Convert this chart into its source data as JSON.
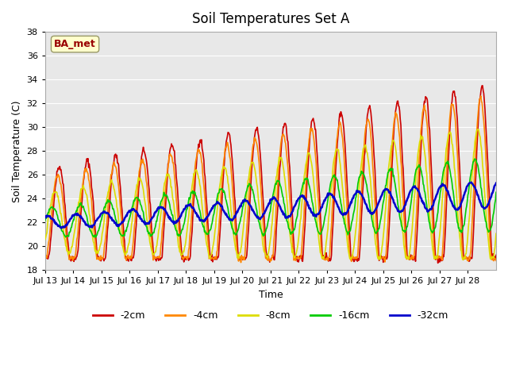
{
  "title": "Soil Temperatures Set A",
  "xlabel": "Time",
  "ylabel": "Soil Temperature (C)",
  "ylim": [
    18,
    38
  ],
  "yticks": [
    18,
    20,
    22,
    24,
    26,
    28,
    30,
    32,
    34,
    36,
    38
  ],
  "xtick_labels": [
    "Jul 13",
    "Jul 14",
    "Jul 15",
    "Jul 16",
    "Jul 17",
    "Jul 18",
    "Jul 19",
    "Jul 20",
    "Jul 21",
    "Jul 22",
    "Jul 23",
    "Jul 24",
    "Jul 25",
    "Jul 26",
    "Jul 27",
    "Jul 28"
  ],
  "colors": {
    "-2cm": "#cc0000",
    "-4cm": "#ff8800",
    "-8cm": "#dddd00",
    "-16cm": "#00cc00",
    "-32cm": "#0000cc"
  },
  "annotation_text": "BA_met",
  "annotation_bg": "#ffffcc",
  "annotation_border": "#999966",
  "background_color": "#e8e8e8",
  "legend_entries": [
    "-2cm",
    "-4cm",
    "-8cm",
    "-16cm",
    "-32cm"
  ]
}
